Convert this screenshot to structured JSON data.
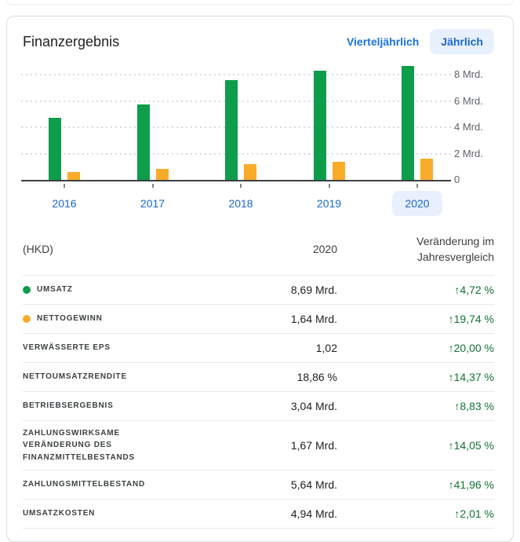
{
  "card": {
    "title": "Finanzergebnis",
    "toggle": {
      "quarterly_label": "Vierteljährlich",
      "yearly_label": "Jährlich",
      "selected": "Jährlich"
    }
  },
  "chart_data": {
    "type": "bar",
    "title": "Finanzergebnis",
    "currency": "HKD",
    "unit": "Mrd.",
    "categories": [
      "2016",
      "2017",
      "2018",
      "2019",
      "2020"
    ],
    "series": [
      {
        "name": "Umsatz",
        "color": "#0d9d4b",
        "values": [
          4.72,
          5.75,
          7.58,
          8.3,
          8.69
        ]
      },
      {
        "name": "Nettogewinn",
        "color": "#faab29",
        "values": [
          0.63,
          0.83,
          1.18,
          1.37,
          1.64
        ]
      }
    ],
    "ylim": [
      0,
      8.9
    ],
    "y_ticks": [
      {
        "value": 0,
        "label": "0"
      },
      {
        "value": 2,
        "label": "2 Mrd."
      },
      {
        "value": 4,
        "label": "4 Mrd."
      },
      {
        "value": 6,
        "label": "6 Mrd."
      },
      {
        "value": 8,
        "label": "8 Mrd."
      }
    ],
    "grid": "horizontal-dotted",
    "legend_position": "none",
    "selected_category": "2020"
  },
  "table": {
    "header": {
      "currency": "(HKD)",
      "period": "2020",
      "change": "Veränderung im Jahresvergleich"
    },
    "rows": [
      {
        "label": "UMSATZ",
        "dot_color": "#0d9d4b",
        "value": "8,69 Mrd.",
        "change": "↑4,72 %"
      },
      {
        "label": "NETTOGEWINN",
        "dot_color": "#faab29",
        "value": "1,64 Mrd.",
        "change": "↑19,74 %"
      },
      {
        "label": "VERWÄSSERTE EPS",
        "value": "1,02",
        "change": "↑20,00 %"
      },
      {
        "label": "NETTOUMSATZRENDITE",
        "value": "18,86 %",
        "change": "↑14,37 %"
      },
      {
        "label": "BETRIEBSERGEBNIS",
        "value": "3,04 Mrd.",
        "change": "↑8,83 %"
      },
      {
        "label": "ZAHLUNGSWIRKSAME VERÄNDERUNG DES FINANZMITTELBESTANDS",
        "value": "1,67 Mrd.",
        "change": "↑14,05 %"
      },
      {
        "label": "ZAHLUNGSMITTELBESTAND",
        "value": "5,64 Mrd.",
        "change": "↑41,96 %"
      },
      {
        "label": "UMSATZKOSTEN",
        "value": "4,94 Mrd.",
        "change": "↑2,01 %"
      }
    ]
  },
  "colors": {
    "revenue_green": "#0d9d4b",
    "net_income_orange": "#faab29",
    "positive_change": "#137333",
    "accent_blue": "#1a73e8",
    "year_label_blue": "#1967d2",
    "selected_chip_bg": "#e8f0fe"
  }
}
